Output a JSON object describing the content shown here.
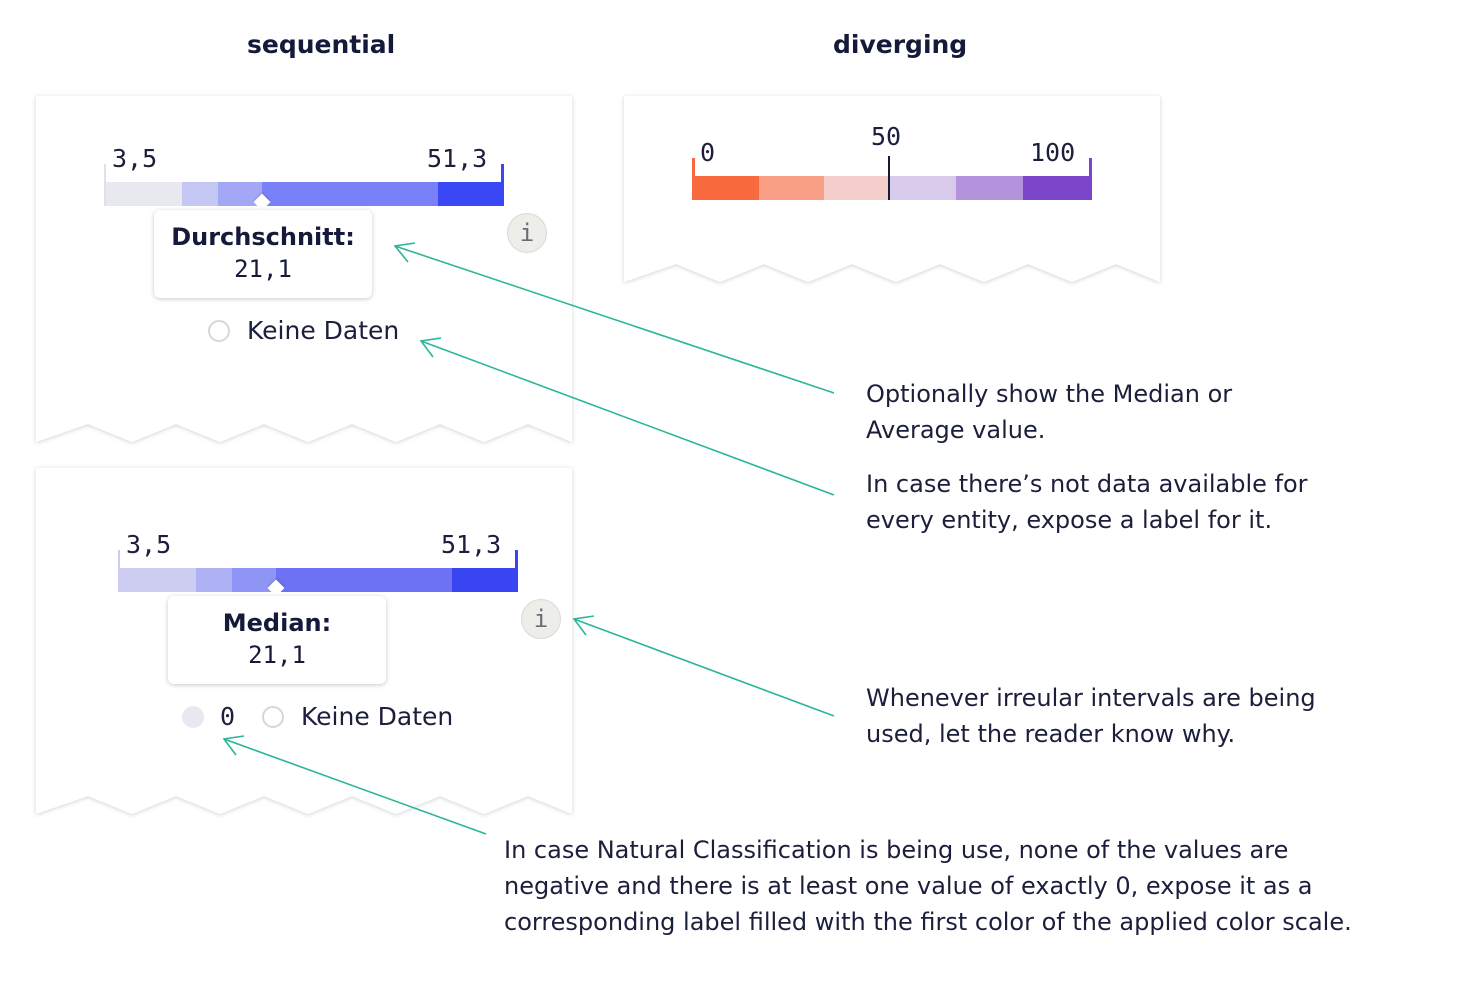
{
  "headings": {
    "sequential": "sequential",
    "diverging": "diverging"
  },
  "panel1": {
    "min_label": "3,5",
    "max_label": "51,3",
    "tooltip_title": "Durchschnitt:",
    "tooltip_value": "21,1",
    "info_label": "i",
    "no_data_label": "Keine Daten",
    "colors": [
      "#e8e8f0",
      "#c4c6f4",
      "#a3a7f6",
      "#7a80f8",
      "#3a47f5"
    ]
  },
  "panel2": {
    "min_label": "3,5",
    "max_label": "51,3",
    "tooltip_title": "Median:",
    "tooltip_value": "21,1",
    "info_label": "i",
    "zero_label": "0",
    "no_data_label": "Keine Daten",
    "colors": [
      "#cdcdf2",
      "#aeb1f3",
      "#8f95f5",
      "#6c72f3",
      "#3a45f2"
    ]
  },
  "panel3": {
    "min_label": "0",
    "mid_label": "50",
    "max_label": "100",
    "colors": [
      "#f86a3e",
      "#f99f86",
      "#f5cfcb",
      "#d7caea",
      "#b493dd",
      "#7a45c8"
    ],
    "min_marker_color": "#f86a3e",
    "max_marker_color": "#7a45c8"
  },
  "notes": {
    "median": [
      "Optionally show the Median or",
      "Average value."
    ],
    "no_data": [
      "In case there’s not data available for",
      "every entity, expose a label for it."
    ],
    "irregular": [
      "Whenever irreular intervals are being",
      "used, let the reader know why."
    ],
    "natural": [
      "In case Natural Classification is being use, none of the values are",
      "negative and there is at least one value of exactly 0, expose it as a",
      "corresponding label filled with the first color of the applied color scale."
    ]
  },
  "accent_color": "#2bb59a"
}
